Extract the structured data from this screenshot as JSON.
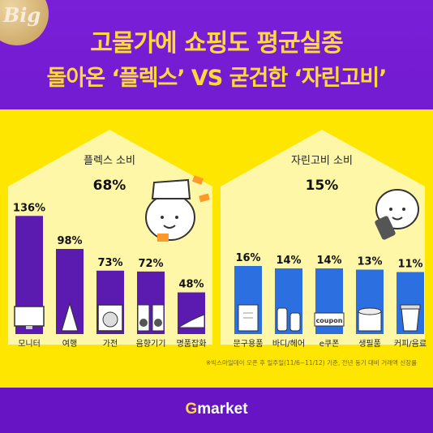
{
  "header": {
    "title_line1": "고물가에 쇼핑도 평균실종",
    "title_line2": "돌아온 ‘플렉스’ VS 굳건한 ‘자린고비’",
    "badge_text": "Big"
  },
  "colors": {
    "background": "#6a18cc",
    "title": "#ffd93a",
    "panel": "#ffe600",
    "flex_bar": "#5b1bb0",
    "jarin_bar": "#2b6fe0"
  },
  "chart_data": [
    {
      "type": "bar",
      "title": "플렉스 소비",
      "total_label": "68%",
      "categories": [
        "모니터",
        "여행",
        "가전",
        "음향기기",
        "명품잡화"
      ],
      "values": [
        136,
        98,
        73,
        72,
        48
      ],
      "value_labels": [
        "136%",
        "98%",
        "73%",
        "72%",
        "48%"
      ],
      "icons": [
        "monitor-icon",
        "eiffel-tower-icon",
        "washing-machine-icon",
        "speaker-icon",
        "high-heel-icon"
      ],
      "ylim": [
        0,
        140
      ]
    },
    {
      "type": "bar",
      "title": "자린고비 소비",
      "total_label": "15%",
      "categories": [
        "문구용품",
        "바디/헤어",
        "e쿠폰",
        "생필품",
        "커피/음료"
      ],
      "values": [
        16,
        14,
        14,
        13,
        11
      ],
      "value_labels": [
        "16%",
        "14%",
        "14%",
        "13%",
        "11%"
      ],
      "icons": [
        "notepad-icon",
        "bottles-icon",
        "coupon-icon",
        "tissue-icon",
        "coffee-cup-icon"
      ],
      "coupon_text": "coupon",
      "ylim": [
        0,
        140
      ]
    }
  ],
  "footnote": "※빅스마일데이 오픈 후 일주일(11/6~11/12) 기준, 전년 동기 대비 거래액 신장률",
  "footer": {
    "logo_g": "G",
    "logo_rest": "market"
  }
}
